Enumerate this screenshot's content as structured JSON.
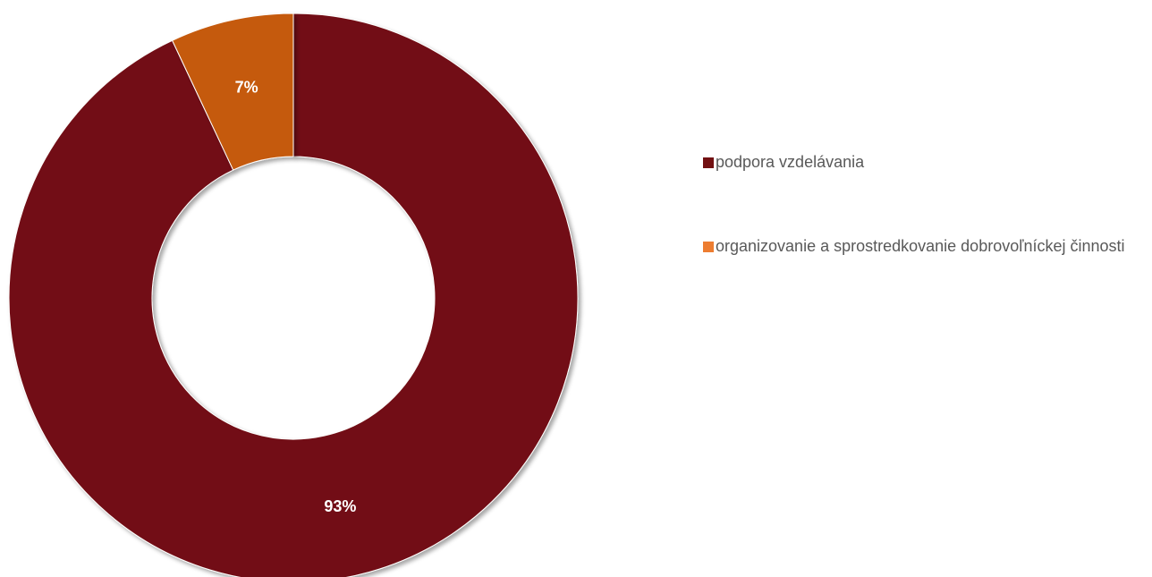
{
  "chart_data": {
    "type": "pie",
    "style": "donut",
    "title": "",
    "categories": [
      "podpora vzdelávania",
      "organizovanie a sprostredkovanie dobrovoľníckej činnosti"
    ],
    "values": [
      93,
      7
    ],
    "labels": [
      "93%",
      "7%"
    ],
    "colors": [
      "#721012",
      "#C55A11"
    ],
    "legend_colors": [
      "#721012",
      "#ED7D31"
    ],
    "legend_position": "right",
    "start_angle_deg": 0,
    "direction": "clockwise"
  }
}
